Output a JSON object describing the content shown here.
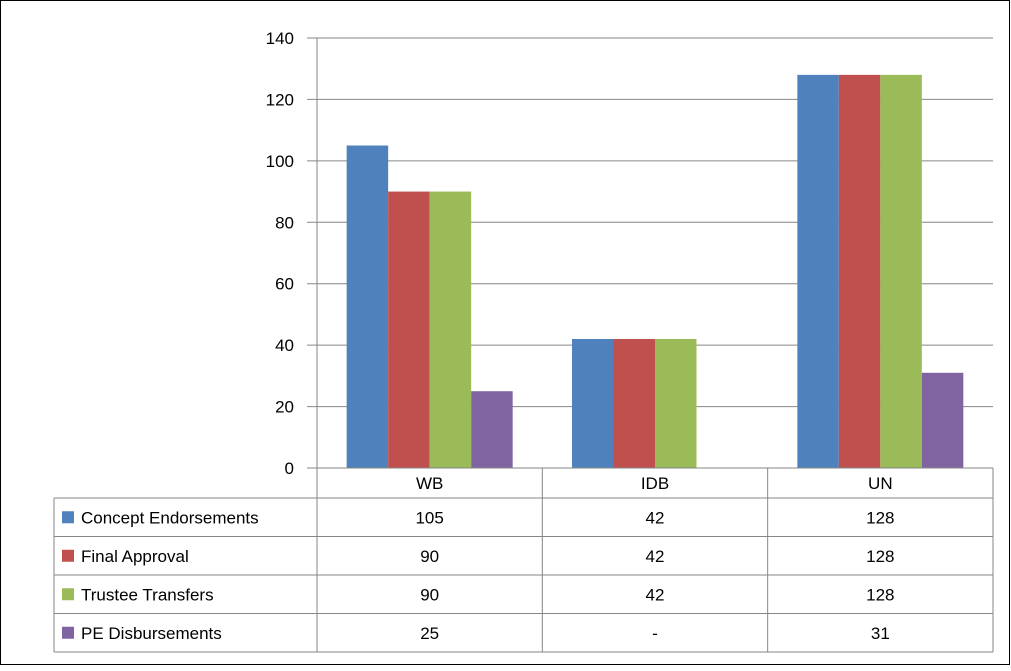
{
  "chart_data": {
    "type": "bar",
    "categories": [
      "WB",
      "IDB",
      "UN"
    ],
    "series": [
      {
        "name": "Concept Endorsements",
        "color": "#4F81BD",
        "values": [
          105,
          42,
          128
        ]
      },
      {
        "name": "Final Approval",
        "color": "#C0504D",
        "values": [
          90,
          42,
          128
        ]
      },
      {
        "name": "Trustee Transfers",
        "color": "#9BBB59",
        "values": [
          90,
          42,
          128
        ]
      },
      {
        "name": "PE Disbursements",
        "color": "#8064A2",
        "values": [
          25,
          null,
          31
        ]
      }
    ],
    "table": {
      "rows": [
        [
          "105",
          "42",
          "128"
        ],
        [
          "90",
          "42",
          "128"
        ],
        [
          "90",
          "42",
          "128"
        ],
        [
          "25",
          "-",
          "31"
        ]
      ]
    },
    "yticks": [
      "0",
      "20",
      "40",
      "60",
      "80",
      "100",
      "120",
      "140"
    ],
    "ylim": [
      0,
      140
    ],
    "grid": true,
    "legend": "data table"
  }
}
